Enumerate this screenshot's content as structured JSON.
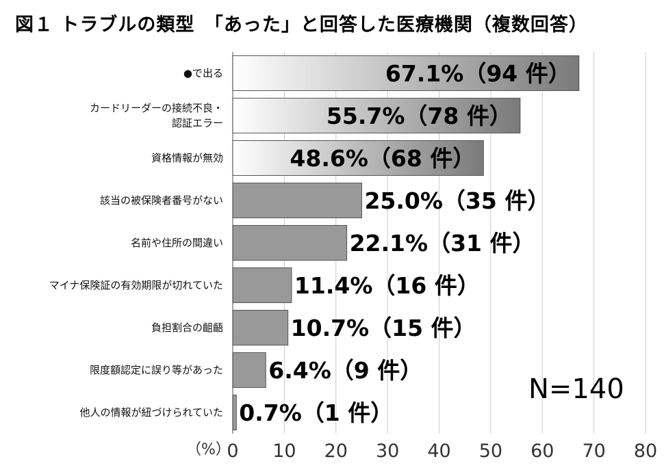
{
  "chart_data": {
    "type": "bar",
    "orientation": "horizontal",
    "title": "図１ トラブルの類型　「あった」と回答した医療機関（複数回答）",
    "xlabel": "（%）",
    "xlim": [
      0,
      80
    ],
    "xticks": [
      0,
      10,
      20,
      30,
      40,
      50,
      60,
      70,
      80
    ],
    "grid": true,
    "note": "N=140",
    "categories": [
      [
        "●で出る"
      ],
      [
        "カードリーダーの接続不良・",
        "認証エラー"
      ],
      [
        "資格情報が無効"
      ],
      [
        "該当の被保険者番号がない"
      ],
      [
        "名前や住所の間違い"
      ],
      [
        "マイナ保険証の有効期限が切れていた"
      ],
      [
        "負担割合の齟齬"
      ],
      [
        "限度額認定に誤り等があった"
      ],
      [
        "他人の情報が紐づけられていた"
      ]
    ],
    "values": [
      67.1,
      55.7,
      48.6,
      25.0,
      22.1,
      11.4,
      10.7,
      6.4,
      0.7
    ],
    "data_labels": [
      "67.1%（94 件）",
      "55.7%（78 件）",
      "48.6%（68 件）",
      "25.0%（35 件）",
      "22.1%（31 件）",
      "11.4%（16 件）",
      "10.7%（15 件）",
      "6.4%（9 件）",
      "0.7%（1 件）"
    ],
    "highlighted_bars": [
      0,
      1,
      2
    ],
    "colors": {
      "bar": "#999999",
      "highlight_start": "#ffffff",
      "highlight_end": "#7a7a7a",
      "grid": "#cccccc",
      "bar_stroke": "#555555"
    }
  }
}
